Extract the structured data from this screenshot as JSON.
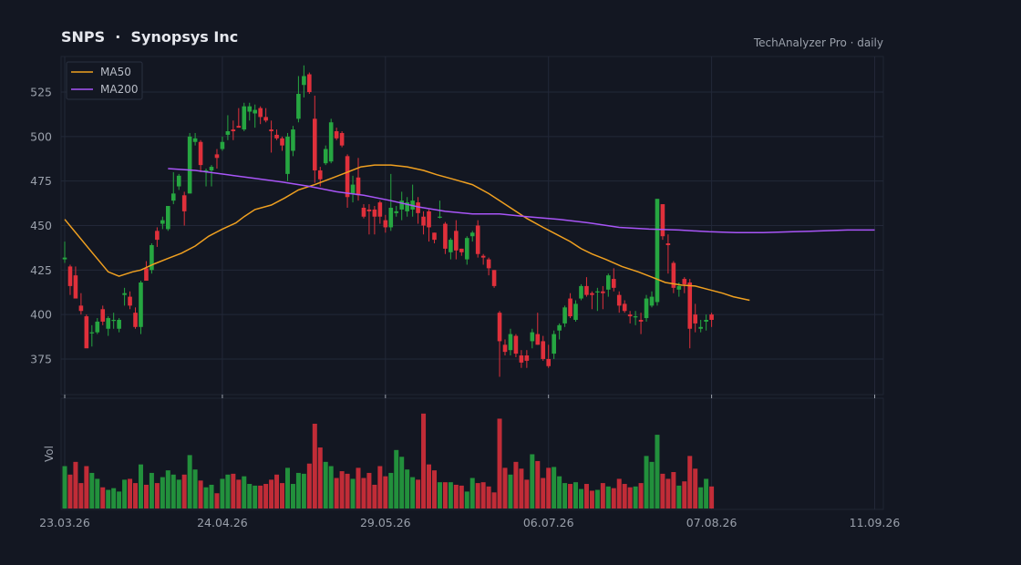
{
  "header": {
    "title": "SNPS  ·  Synopsys Inc",
    "source": "TechAnalyzer Pro · daily"
  },
  "colors": {
    "background": "#131722",
    "grid": "#222838",
    "up": "#26a641",
    "down": "#e0303b",
    "ma50": "#f0a020",
    "ma200": "#a855f7"
  },
  "chart_data": {
    "type": "candlestick",
    "ylim": [
      355,
      545
    ],
    "y_ticks": [
      375,
      400,
      425,
      450,
      475,
      500,
      525
    ],
    "x_ticks": [
      {
        "index": 0,
        "label": "23.03.26"
      },
      {
        "index": 29,
        "label": "24.04.26"
      },
      {
        "index": 59,
        "label": "29.05.26"
      },
      {
        "index": 89,
        "label": "06.07.26"
      },
      {
        "index": 119,
        "label": "07.08.26"
      },
      {
        "index": 149,
        "label": "11.09.26"
      }
    ],
    "legend": [
      {
        "name": "MA50",
        "color": "#f0a020"
      },
      {
        "name": "MA200",
        "color": "#a855f7"
      }
    ],
    "volume_label": "Vol",
    "candles": [
      {
        "o": 431,
        "h": 441,
        "l": 429,
        "c": 432
      },
      {
        "o": 427,
        "h": 428,
        "l": 411,
        "c": 416
      },
      {
        "o": 422,
        "h": 427,
        "l": 410,
        "c": 409
      },
      {
        "o": 405,
        "h": 412,
        "l": 400,
        "c": 402
      },
      {
        "o": 399,
        "h": 400,
        "l": 382,
        "c": 381
      },
      {
        "o": 390,
        "h": 394,
        "l": 382,
        "c": 390
      },
      {
        "o": 390,
        "h": 398,
        "l": 389,
        "c": 396
      },
      {
        "o": 403,
        "h": 405,
        "l": 394,
        "c": 396
      },
      {
        "o": 392,
        "h": 399,
        "l": 388,
        "c": 398
      },
      {
        "o": 397,
        "h": 401,
        "l": 392,
        "c": 397
      },
      {
        "o": 392,
        "h": 398,
        "l": 390,
        "c": 397
      },
      {
        "o": 411,
        "h": 415,
        "l": 405,
        "c": 412
      },
      {
        "o": 410,
        "h": 413,
        "l": 403,
        "c": 405
      },
      {
        "o": 401,
        "h": 404,
        "l": 392,
        "c": 393
      },
      {
        "o": 393,
        "h": 419,
        "l": 389,
        "c": 418
      },
      {
        "o": 426,
        "h": 430,
        "l": 420,
        "c": 419
      },
      {
        "o": 425,
        "h": 440,
        "l": 423,
        "c": 439
      },
      {
        "o": 447,
        "h": 449,
        "l": 438,
        "c": 442
      },
      {
        "o": 451,
        "h": 455,
        "l": 448,
        "c": 453
      },
      {
        "o": 448,
        "h": 461,
        "l": 447,
        "c": 461
      },
      {
        "o": 464,
        "h": 480,
        "l": 462,
        "c": 468
      },
      {
        "o": 472,
        "h": 479,
        "l": 470,
        "c": 478
      },
      {
        "o": 467,
        "h": 469,
        "l": 450,
        "c": 458
      },
      {
        "o": 468,
        "h": 502,
        "l": 468,
        "c": 500
      },
      {
        "o": 497,
        "h": 502,
        "l": 495,
        "c": 499
      },
      {
        "o": 497,
        "h": 498,
        "l": 480,
        "c": 484
      },
      {
        "o": 480,
        "h": 482,
        "l": 472,
        "c": 481
      },
      {
        "o": 481,
        "h": 484,
        "l": 472,
        "c": 483
      },
      {
        "o": 490,
        "h": 493,
        "l": 482,
        "c": 488
      },
      {
        "o": 493,
        "h": 500,
        "l": 492,
        "c": 497
      },
      {
        "o": 501,
        "h": 512,
        "l": 498,
        "c": 503
      },
      {
        "o": 504,
        "h": 509,
        "l": 498,
        "c": 503
      },
      {
        "o": 506,
        "h": 516,
        "l": 505,
        "c": 505
      },
      {
        "o": 504,
        "h": 519,
        "l": 503,
        "c": 517
      },
      {
        "o": 514,
        "h": 519,
        "l": 509,
        "c": 517
      },
      {
        "o": 513,
        "h": 518,
        "l": 505,
        "c": 515
      },
      {
        "o": 516,
        "h": 517,
        "l": 507,
        "c": 511
      },
      {
        "o": 511,
        "h": 516,
        "l": 508,
        "c": 509
      },
      {
        "o": 504,
        "h": 509,
        "l": 491,
        "c": 503
      },
      {
        "o": 501,
        "h": 504,
        "l": 498,
        "c": 499
      },
      {
        "o": 499,
        "h": 500,
        "l": 492,
        "c": 495
      },
      {
        "o": 479,
        "h": 502,
        "l": 475,
        "c": 500
      },
      {
        "o": 492,
        "h": 506,
        "l": 489,
        "c": 504
      },
      {
        "o": 510,
        "h": 534,
        "l": 508,
        "c": 524
      },
      {
        "o": 529,
        "h": 540,
        "l": 522,
        "c": 534
      },
      {
        "o": 535,
        "h": 536,
        "l": 524,
        "c": 525
      },
      {
        "o": 510,
        "h": 523,
        "l": 474,
        "c": 481
      },
      {
        "o": 481,
        "h": 483,
        "l": 472,
        "c": 476
      },
      {
        "o": 485,
        "h": 495,
        "l": 484,
        "c": 493
      },
      {
        "o": 486,
        "h": 510,
        "l": 485,
        "c": 508
      },
      {
        "o": 503,
        "h": 505,
        "l": 498,
        "c": 499
      },
      {
        "o": 502,
        "h": 503,
        "l": 494,
        "c": 495
      },
      {
        "o": 489,
        "h": 490,
        "l": 460,
        "c": 466
      },
      {
        "o": 468,
        "h": 478,
        "l": 463,
        "c": 473
      },
      {
        "o": 477,
        "h": 488,
        "l": 464,
        "c": 467
      },
      {
        "o": 460,
        "h": 462,
        "l": 454,
        "c": 455
      },
      {
        "o": 459,
        "h": 462,
        "l": 445,
        "c": 458
      },
      {
        "o": 459,
        "h": 461,
        "l": 445,
        "c": 455
      },
      {
        "o": 463,
        "h": 464,
        "l": 451,
        "c": 455
      },
      {
        "o": 453,
        "h": 456,
        "l": 446,
        "c": 449
      },
      {
        "o": 449,
        "h": 479,
        "l": 447,
        "c": 460
      },
      {
        "o": 457,
        "h": 461,
        "l": 455,
        "c": 458
      },
      {
        "o": 459,
        "h": 469,
        "l": 453,
        "c": 464
      },
      {
        "o": 458,
        "h": 466,
        "l": 455,
        "c": 463
      },
      {
        "o": 459,
        "h": 473,
        "l": 455,
        "c": 464
      },
      {
        "o": 463,
        "h": 466,
        "l": 451,
        "c": 457
      },
      {
        "o": 455,
        "h": 458,
        "l": 445,
        "c": 450
      },
      {
        "o": 458,
        "h": 459,
        "l": 441,
        "c": 449
      },
      {
        "o": 446,
        "h": 446,
        "l": 440,
        "c": 442
      },
      {
        "o": 455,
        "h": 464,
        "l": 454,
        "c": 455
      },
      {
        "o": 451,
        "h": 452,
        "l": 434,
        "c": 437
      },
      {
        "o": 435,
        "h": 443,
        "l": 431,
        "c": 442
      },
      {
        "o": 447,
        "h": 453,
        "l": 431,
        "c": 436
      },
      {
        "o": 437,
        "h": 437,
        "l": 433,
        "c": 435
      },
      {
        "o": 431,
        "h": 444,
        "l": 428,
        "c": 443
      },
      {
        "o": 444,
        "h": 447,
        "l": 441,
        "c": 446
      },
      {
        "o": 450,
        "h": 453,
        "l": 432,
        "c": 434
      },
      {
        "o": 433,
        "h": 434,
        "l": 428,
        "c": 432
      },
      {
        "o": 431,
        "h": 432,
        "l": 422,
        "c": 426
      },
      {
        "o": 425,
        "h": 425,
        "l": 415,
        "c": 416
      },
      {
        "o": 401,
        "h": 402,
        "l": 365,
        "c": 385
      },
      {
        "o": 383,
        "h": 386,
        "l": 377,
        "c": 379
      },
      {
        "o": 380,
        "h": 392,
        "l": 377,
        "c": 389
      },
      {
        "o": 388,
        "h": 389,
        "l": 376,
        "c": 378
      },
      {
        "o": 377,
        "h": 380,
        "l": 370,
        "c": 373
      },
      {
        "o": 377,
        "h": 380,
        "l": 370,
        "c": 374
      },
      {
        "o": 385,
        "h": 392,
        "l": 381,
        "c": 390
      },
      {
        "o": 389,
        "h": 401,
        "l": 383,
        "c": 383
      },
      {
        "o": 385,
        "h": 388,
        "l": 374,
        "c": 375
      },
      {
        "o": 375,
        "h": 383,
        "l": 370,
        "c": 371
      },
      {
        "o": 378,
        "h": 391,
        "l": 375,
        "c": 389
      },
      {
        "o": 391,
        "h": 395,
        "l": 386,
        "c": 394
      },
      {
        "o": 395,
        "h": 405,
        "l": 393,
        "c": 404
      },
      {
        "o": 409,
        "h": 412,
        "l": 398,
        "c": 399
      },
      {
        "o": 397,
        "h": 408,
        "l": 396,
        "c": 406
      },
      {
        "o": 409,
        "h": 417,
        "l": 408,
        "c": 416
      },
      {
        "o": 416,
        "h": 421,
        "l": 410,
        "c": 411
      },
      {
        "o": 412,
        "h": 413,
        "l": 403,
        "c": 411
      },
      {
        "o": 413,
        "h": 415,
        "l": 402,
        "c": 413
      },
      {
        "o": 413,
        "h": 416,
        "l": 403,
        "c": 412
      },
      {
        "o": 414,
        "h": 423,
        "l": 410,
        "c": 422
      },
      {
        "o": 420,
        "h": 426,
        "l": 413,
        "c": 415
      },
      {
        "o": 411,
        "h": 413,
        "l": 401,
        "c": 405
      },
      {
        "o": 406,
        "h": 408,
        "l": 401,
        "c": 402
      },
      {
        "o": 400,
        "h": 402,
        "l": 395,
        "c": 399
      },
      {
        "o": 399,
        "h": 402,
        "l": 394,
        "c": 399
      },
      {
        "o": 397,
        "h": 401,
        "l": 389,
        "c": 396
      },
      {
        "o": 398,
        "h": 411,
        "l": 396,
        "c": 409
      },
      {
        "o": 405,
        "h": 413,
        "l": 404,
        "c": 410
      },
      {
        "o": 407,
        "h": 465,
        "l": 405,
        "c": 465
      },
      {
        "o": 462,
        "h": 462,
        "l": 442,
        "c": 444
      },
      {
        "o": 440,
        "h": 445,
        "l": 423,
        "c": 439
      },
      {
        "o": 429,
        "h": 430,
        "l": 412,
        "c": 415
      },
      {
        "o": 414,
        "h": 418,
        "l": 410,
        "c": 416
      },
      {
        "o": 420,
        "h": 421,
        "l": 412,
        "c": 417
      },
      {
        "o": 418,
        "h": 420,
        "l": 381,
        "c": 392
      },
      {
        "o": 400,
        "h": 406,
        "l": 390,
        "c": 395
      },
      {
        "o": 392,
        "h": 397,
        "l": 390,
        "c": 393
      },
      {
        "o": 396,
        "h": 400,
        "l": 391,
        "c": 397
      },
      {
        "o": 400,
        "h": 401,
        "l": 393,
        "c": 397
      }
    ],
    "volumes": [
      0.5,
      0.4,
      0.55,
      0.3,
      0.5,
      0.42,
      0.35,
      0.25,
      0.22,
      0.24,
      0.2,
      0.34,
      0.35,
      0.3,
      0.52,
      0.28,
      0.42,
      0.3,
      0.37,
      0.45,
      0.4,
      0.34,
      0.4,
      0.63,
      0.46,
      0.33,
      0.25,
      0.28,
      0.18,
      0.35,
      0.4,
      0.41,
      0.34,
      0.38,
      0.29,
      0.27,
      0.27,
      0.29,
      0.34,
      0.4,
      0.3,
      0.48,
      0.29,
      0.42,
      0.41,
      0.53,
      1.0,
      0.72,
      0.55,
      0.5,
      0.36,
      0.44,
      0.41,
      0.35,
      0.48,
      0.36,
      0.42,
      0.28,
      0.5,
      0.38,
      0.42,
      0.69,
      0.61,
      0.46,
      0.37,
      0.34,
      1.12,
      0.52,
      0.45,
      0.31,
      0.31,
      0.31,
      0.28,
      0.27,
      0.2,
      0.36,
      0.3,
      0.31,
      0.26,
      0.19,
      1.06,
      0.48,
      0.4,
      0.55,
      0.47,
      0.34,
      0.64,
      0.56,
      0.36,
      0.48,
      0.49,
      0.38,
      0.3,
      0.29,
      0.31,
      0.23,
      0.29,
      0.21,
      0.22,
      0.3,
      0.26,
      0.24,
      0.35,
      0.29,
      0.25,
      0.26,
      0.3,
      0.62,
      0.55,
      0.87,
      0.41,
      0.35,
      0.43,
      0.27,
      0.32,
      0.62,
      0.47,
      0.25,
      0.35,
      0.26
    ],
    "ma50": [
      [
        0,
        453.5
      ],
      [
        10,
        435
      ],
      [
        16,
        424
      ],
      [
        20,
        421.5
      ],
      [
        25,
        424
      ],
      [
        28,
        425
      ],
      [
        33,
        428.5
      ],
      [
        38,
        431.5
      ],
      [
        43,
        434.5
      ],
      [
        48,
        438.5
      ],
      [
        53,
        444
      ],
      [
        58,
        448
      ],
      [
        63,
        451.5
      ],
      [
        66,
        455
      ],
      [
        70,
        459
      ],
      [
        76,
        461.5
      ],
      [
        81,
        465.5
      ],
      [
        86,
        470
      ],
      [
        92,
        473
      ],
      [
        98,
        476.5
      ],
      [
        104,
        480
      ],
      [
        109,
        483
      ],
      [
        114,
        484
      ],
      [
        120,
        484
      ],
      [
        126,
        483
      ],
      [
        132,
        481
      ],
      [
        137,
        478.5
      ],
      [
        143,
        476
      ],
      [
        150,
        473
      ],
      [
        156,
        468
      ],
      [
        161,
        463
      ],
      [
        166,
        458
      ],
      [
        170,
        454
      ],
      [
        176,
        449
      ],
      [
        181,
        445
      ],
      [
        186,
        441
      ],
      [
        190,
        437
      ],
      [
        194,
        434
      ],
      [
        199,
        431
      ],
      [
        205,
        427
      ],
      [
        211,
        424
      ],
      [
        216,
        421
      ],
      [
        221,
        418
      ],
      [
        227,
        416.5
      ],
      [
        232,
        416
      ],
      [
        237,
        414
      ],
      [
        242,
        412
      ],
      [
        246,
        410
      ],
      [
        252,
        408
      ]
    ],
    "ma200": [
      [
        38,
        482
      ],
      [
        48,
        481
      ],
      [
        60,
        478.5
      ],
      [
        70,
        476.5
      ],
      [
        80,
        474.5
      ],
      [
        90,
        472
      ],
      [
        100,
        469
      ],
      [
        110,
        467
      ],
      [
        120,
        464
      ],
      [
        130,
        460.5
      ],
      [
        140,
        458
      ],
      [
        150,
        456.5
      ],
      [
        160,
        456.5
      ],
      [
        170,
        455
      ],
      [
        182,
        453.5
      ],
      [
        193,
        451.5
      ],
      [
        204,
        449
      ],
      [
        215,
        448
      ],
      [
        226,
        447.5
      ],
      [
        237,
        446.5
      ],
      [
        247,
        446
      ],
      [
        257,
        446
      ],
      [
        268,
        446.5
      ],
      [
        278,
        447
      ],
      [
        288,
        447.5
      ],
      [
        298,
        447.5
      ]
    ]
  }
}
